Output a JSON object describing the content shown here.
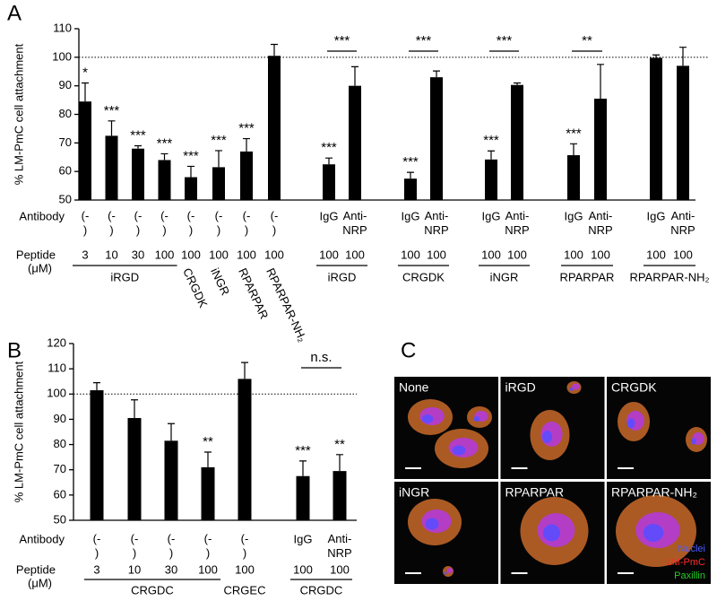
{
  "chart_data": [
    {
      "type": "bar",
      "panel": "A",
      "y_label": "% LM-PmC cell attachment",
      "antibody_label": "Antibody",
      "peptide_label": [
        "Peptide",
        "(μM)"
      ],
      "ylim": [
        50,
        110
      ],
      "yticks": [
        50,
        60,
        70,
        80,
        90,
        100,
        110
      ],
      "reference_line": 100,
      "color": "#000000",
      "groups": [
        {
          "name": "iRGD",
          "antibody": [
            "(-)",
            "(-)",
            "(-)",
            "(-)"
          ],
          "peptide": [
            3,
            10,
            30,
            100
          ],
          "values": [
            84.5,
            72.5,
            68,
            64
          ],
          "errors": [
            6.5,
            5.2,
            1,
            2.2
          ],
          "significance": [
            "*",
            "***",
            "***",
            "***"
          ]
        },
        {
          "name": "CRGDK",
          "antibody": [
            "(-)"
          ],
          "peptide": [
            100
          ],
          "values": [
            58
          ],
          "errors": [
            3.8
          ],
          "significance": [
            "***"
          ]
        },
        {
          "name": "iNGR",
          "antibody": [
            "(-)"
          ],
          "peptide": [
            100
          ],
          "values": [
            61.5
          ],
          "errors": [
            5.8
          ],
          "significance": [
            "***"
          ]
        },
        {
          "name": "RPARPAR",
          "antibody": [
            "(-)"
          ],
          "peptide": [
            100
          ],
          "values": [
            67
          ],
          "errors": [
            4.5
          ],
          "significance": [
            "***"
          ]
        },
        {
          "name": "RPARPAR-NH₂",
          "antibody": [
            "(-)"
          ],
          "peptide": [
            100
          ],
          "values": [
            100.5
          ],
          "errors": [
            4
          ],
          "significance": [
            null
          ]
        },
        {
          "name": "iRGD",
          "antibody": [
            "IgG",
            "Anti-NRP"
          ],
          "peptide": [
            100,
            100
          ],
          "values": [
            62.5,
            90
          ],
          "errors": [
            2.2,
            6.7
          ],
          "significance": [
            "***",
            null
          ],
          "comparison": "***"
        },
        {
          "name": "CRGDK",
          "antibody": [
            "IgG",
            "Anti-NRP"
          ],
          "peptide": [
            100,
            100
          ],
          "values": [
            57.5,
            93
          ],
          "errors": [
            2.2,
            2.2
          ],
          "significance": [
            "***",
            null
          ],
          "comparison": "***"
        },
        {
          "name": "iNGR",
          "antibody": [
            "IgG",
            "Anti-NRP"
          ],
          "peptide": [
            100,
            100
          ],
          "values": [
            64.2,
            90.3
          ],
          "errors": [
            3,
            0.7
          ],
          "significance": [
            "***",
            null
          ],
          "comparison": "***"
        },
        {
          "name": "RPARPAR",
          "antibody": [
            "IgG",
            "Anti-NRP"
          ],
          "peptide": [
            100,
            100
          ],
          "values": [
            65.7,
            85.5
          ],
          "errors": [
            4,
            12
          ],
          "significance": [
            "***",
            null
          ],
          "comparison": "**"
        },
        {
          "name": "RPARPAR-NH₂",
          "antibody": [
            "IgG",
            "Anti-NRP"
          ],
          "peptide": [
            100,
            100
          ],
          "values": [
            99.8,
            97
          ],
          "errors": [
            1,
            6.5
          ],
          "significance": [
            null,
            null
          ]
        }
      ]
    },
    {
      "type": "bar",
      "panel": "B",
      "y_label": "% LM-PmC cell attachment",
      "antibody_label": "Antibody",
      "peptide_label": [
        "Peptide",
        "(μM)"
      ],
      "ylim": [
        50,
        120
      ],
      "yticks": [
        50,
        60,
        70,
        80,
        90,
        100,
        110,
        120
      ],
      "reference_line": 100,
      "color": "#000000",
      "groups": [
        {
          "name": "CRGDC",
          "antibody": [
            "(-)",
            "(-)",
            "(-)",
            "(-)"
          ],
          "peptide": [
            3,
            10,
            30,
            100
          ],
          "values": [
            101.5,
            90.5,
            81.5,
            71
          ],
          "errors": [
            3,
            7.2,
            6.8,
            6
          ],
          "significance": [
            null,
            null,
            null,
            "**"
          ]
        },
        {
          "name": "CRGEC",
          "antibody": [
            "(-)"
          ],
          "peptide": [
            100
          ],
          "values": [
            106
          ],
          "errors": [
            6.5
          ],
          "significance": [
            null
          ]
        },
        {
          "name": "CRGDC",
          "antibody": [
            "IgG",
            "Anti-NRP"
          ],
          "peptide": [
            100,
            100
          ],
          "values": [
            67.5,
            69.5
          ],
          "errors": [
            6,
            6.5
          ],
          "significance": [
            "***",
            "**"
          ],
          "comparison": "n.s."
        }
      ]
    }
  ],
  "image_panel": {
    "label": "C",
    "tiles": [
      "None",
      "iRGD",
      "CRGDK",
      "iNGR",
      "RPARPAR",
      "RPARPAR-NH₂"
    ],
    "legend": [
      {
        "name": "Nuclei",
        "color": "#4a5cff"
      },
      {
        "name": "LM-PmC",
        "color": "#ff2a2a"
      },
      {
        "name": "Paxillin",
        "color": "#22cc22"
      }
    ]
  }
}
